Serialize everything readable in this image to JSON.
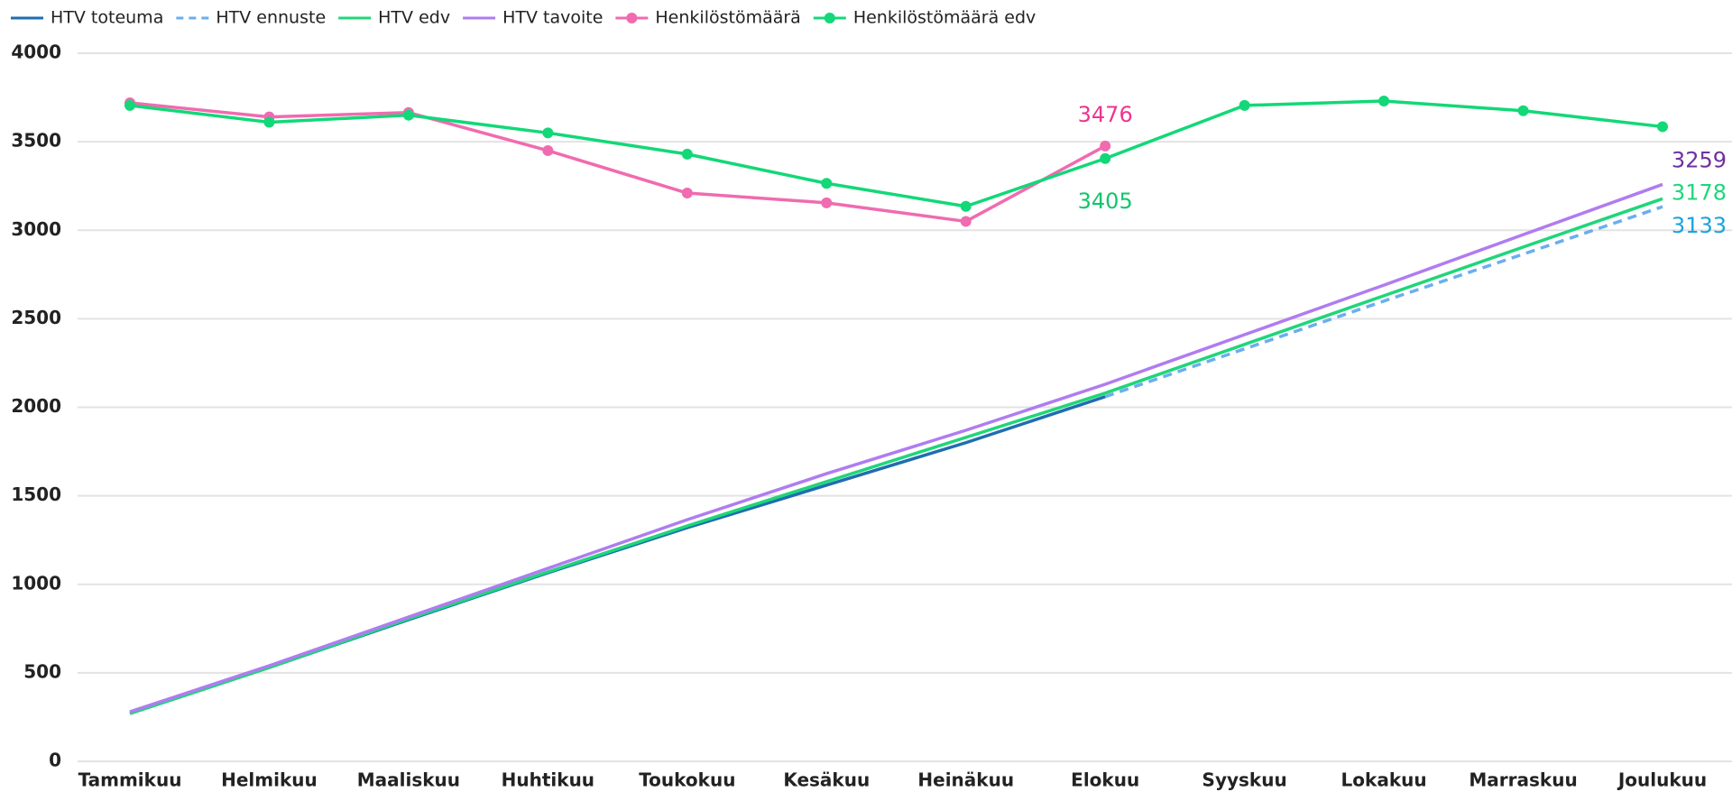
{
  "chart_data": {
    "type": "line",
    "categories": [
      "Tammikuu",
      "Helmikuu",
      "Maaliskuu",
      "Huhtikuu",
      "Toukokuu",
      "Kesäkuu",
      "Heinäkuu",
      "Elokuu",
      "Syyskuu",
      "Lokakuu",
      "Marraskuu",
      "Joulukuu"
    ],
    "ylim": [
      0,
      4000
    ],
    "yticks": [
      0,
      500,
      1000,
      1500,
      2000,
      2500,
      3000,
      3500,
      4000
    ],
    "grid": true,
    "legend": "top-left",
    "series": [
      {
        "name": "HTV toteuma",
        "color": "#1f6db0",
        "dash": false,
        "markers": false,
        "values": [
          270,
          530,
          800,
          1065,
          1320,
          1560,
          1800,
          2060,
          null,
          null,
          null,
          null
        ]
      },
      {
        "name": "HTV ennuste",
        "color": "#6aaef0",
        "dash": true,
        "markers": false,
        "values": [
          null,
          null,
          null,
          null,
          null,
          null,
          null,
          2060,
          2330,
          2600,
          2865,
          3133
        ],
        "labeled_points": [
          11
        ],
        "label_color": "#1aa3e0",
        "label_position": "below-right"
      },
      {
        "name": "HTV edv",
        "color": "#1fd67a",
        "dash": false,
        "markers": false,
        "values": [
          270,
          530,
          805,
          1070,
          1330,
          1580,
          1830,
          2080,
          2355,
          2630,
          2905,
          3178
        ],
        "labeled_points": [
          11
        ],
        "label_color": "#1fd67a",
        "label_position": "right"
      },
      {
        "name": "HTV tavoite",
        "color": "#b07cf0",
        "dash": false,
        "markers": false,
        "values": [
          280,
          540,
          815,
          1090,
          1365,
          1625,
          1870,
          2130,
          2410,
          2690,
          2975,
          3259
        ],
        "labeled_points": [
          11
        ],
        "label_color": "#7030a0",
        "label_position": "above-right"
      },
      {
        "name": "Henkilöstömäärä",
        "color": "#f06bb0",
        "dash": false,
        "markers": true,
        "values": [
          3720,
          3640,
          3665,
          3450,
          3210,
          3155,
          3050,
          3476,
          null,
          null,
          null,
          null
        ],
        "labeled_points": [
          7
        ],
        "label_color": "#f0338f",
        "label_position": "above"
      },
      {
        "name": "Henkilöstömäärä edv",
        "color": "#12d877",
        "dash": false,
        "markers": true,
        "values": [
          3705,
          3610,
          3650,
          3550,
          3430,
          3265,
          3135,
          3405,
          3705,
          3730,
          3675,
          3585
        ],
        "labeled_points": [
          7
        ],
        "label_color": "#12c56c",
        "label_position": "below"
      }
    ]
  }
}
